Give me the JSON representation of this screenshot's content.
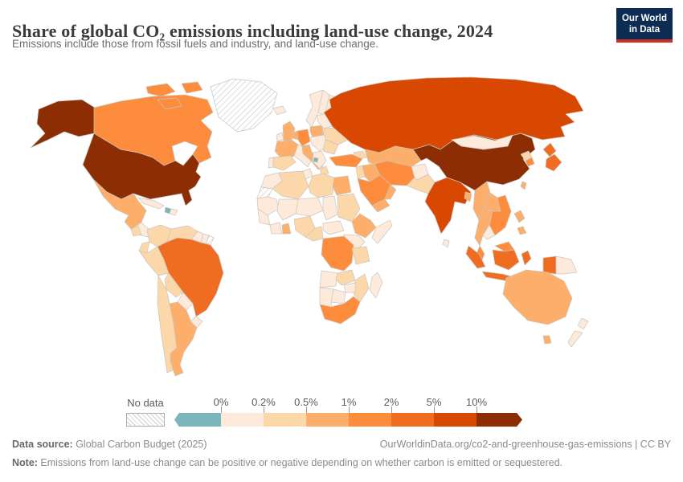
{
  "header": {
    "title": "Share of global CO₂ emissions including land-use change, 2024",
    "subtitle": "Emissions include those from fossil fuels and industry, and land-use change."
  },
  "logo": {
    "line1": "Our World",
    "line2": "in Data"
  },
  "legend": {
    "no_data_label": "No data",
    "ticks": [
      "0%",
      "0.2%",
      "0.5%",
      "1%",
      "2%",
      "5%",
      "10%"
    ],
    "segment_colors": [
      "#7cb5bb",
      "#fdeada",
      "#fcd7a9",
      "#fdae6b",
      "#fd8d3c",
      "#ef6c21",
      "#d94801",
      "#8c2d04"
    ]
  },
  "chart_data": {
    "type": "heatmap",
    "subtype": "world-choropleth",
    "title": "Share of global CO₂ emissions including land-use change, 2024",
    "year": "2024",
    "unit": "share of global total CO₂ emissions",
    "bins": [
      "negative",
      "0–0.2%",
      "0.2–0.5%",
      "0.5–1%",
      "1–2%",
      "2–5%",
      "5–10%",
      ">10%",
      "no-data"
    ],
    "palette": {
      "negative": "#7cb5bb",
      "0–0.2%": "#fdeada",
      "0.2–0.5%": "#fcd7a9",
      "0.5–1%": "#fdae6b",
      "1–2%": "#fd8d3c",
      "2–5%": "#ef6c21",
      "5–10%": "#d94801",
      ">10%": "#8c2d04",
      "no-data": "no-data"
    },
    "regions": {
      "greenland": "no-data",
      "western-sahara": "no-data",
      "french-guiana": "no-data",
      "alaska": ">10%",
      "united-states": ">10%",
      "canada": "1–2%",
      "canada-islands-1": "1–2%",
      "canada-islands-2": "1–2%",
      "canada-islands-3": "1–2%",
      "mexico": "0.5–1%",
      "guatemala": "0.2–0.5%",
      "central-america": "0–0.2%",
      "cuba": "0–0.2%",
      "haiti": "negative",
      "dominican-republic": "0–0.2%",
      "colombia": "0.2–0.5%",
      "venezuela": "0.2–0.5%",
      "guyana": "0–0.2%",
      "suriname": "0–0.2%",
      "ecuador": "0.2–0.5%",
      "peru": "0.2–0.5%",
      "brazil": "2–5%",
      "bolivia": "0.2–0.5%",
      "paraguay": "0–0.2%",
      "uruguay": "0–0.2%",
      "chile": "0.2–0.5%",
      "argentina": "0.5–1%",
      "iceland": "0–0.2%",
      "united-kingdom": "0.5–1%",
      "ireland": "0–0.2%",
      "norway": "0–0.2%",
      "sweden": "0–0.2%",
      "finland": "0–0.2%",
      "denmark": "0–0.2%",
      "benelux": "0.5–1%",
      "germany": "1–2%",
      "france": "0.5–1%",
      "spain": "0.2–0.5%",
      "portugal": "0–0.2%",
      "italy": "0.5–1%",
      "alpine-balkans": "0–0.2%",
      "poland": "0.5–1%",
      "czech-hungary": "0–0.2%",
      "balkans": "0–0.2%",
      "montenegro": "negative",
      "greece": "0.2–0.5%",
      "ukraine": "0.2–0.5%",
      "belarus-baltics": "0–0.2%",
      "romania-bulgaria": "0.2–0.5%",
      "russia": "5–10%",
      "kazakhstan": "0.5–1%",
      "central-asia": "0.2–0.5%",
      "caucasus": "0.2–0.5%",
      "turkey": "1–2%",
      "levant": "0.2–0.5%",
      "iraq": "0.5–1%",
      "saudi-arabia": "1–2%",
      "yemen": "0.5–1%",
      "oman": "0.5–1%",
      "iran": "1–2%",
      "afghanistan": "0–0.2%",
      "pakistan": "0.2–0.5%",
      "india": "5–10%",
      "sri-lanka": "0–0.2%",
      "bangladesh": "0.5–1%",
      "china": ">10%",
      "mongolia": "0–0.2%",
      "north-korea": "0.2–0.5%",
      "south-korea": "1–2%",
      "japan-north": "2–5%",
      "japan-south": "2–5%",
      "taiwan": "0.5–1%",
      "myanmar": "0.5–1%",
      "thailand": "0.5–1%",
      "laos": "0.5–1%",
      "vietnam": "1–2%",
      "cambodia": "0–0.2%",
      "malay-peninsula": "1–2%",
      "sumatra": "2–5%",
      "java": "2–5%",
      "borneo-malaysia": "1–2%",
      "borneo-indonesia": "2–5%",
      "sulawesi": "2–5%",
      "west-papua": "2–5%",
      "papua-new-guinea": "0–0.2%",
      "philippines-north": "0.5–1%",
      "philippines-south": "0.5–1%",
      "australia": "0.5–1%",
      "tasmania": "0.5–1%",
      "new-zealand-north": "0–0.2%",
      "new-zealand-south": "0–0.2%",
      "morocco": "0–0.2%",
      "algeria": "0.2–0.5%",
      "tunisia": "0–0.2%",
      "libya": "0.2–0.5%",
      "egypt": "0.5–1%",
      "mauritania": "0–0.2%",
      "mali": "0–0.2%",
      "niger": "0–0.2%",
      "chad": "0–0.2%",
      "sudan": "0.2–0.5%",
      "senegal": "0–0.2%",
      "guinea-ivory-coast": "0–0.2%",
      "ghana": "0.5–1%",
      "nigeria": "0.2–0.5%",
      "cameroon": "0.2–0.5%",
      "central-african-republic": "0–0.2%",
      "ethiopia": "0.5–1%",
      "somalia": "0–0.2%",
      "kenya-uganda": "0–0.2%",
      "dr-congo": "1–2%",
      "tanzania": "0.2–0.5%",
      "angola": "0–0.2%",
      "zambia": "0.2–0.5%",
      "mozambique": "0.2–0.5%",
      "zimbabwe": "0–0.2%",
      "namibia": "0–0.2%",
      "botswana": "0–0.2%",
      "south-africa": "1–2%",
      "madagascar": "0–0.2%"
    }
  },
  "footer": {
    "source_label": "Data source:",
    "source": " Global Carbon Budget (2025)",
    "link": "OurWorldinData.org/co2-and-greenhouse-gas-emissions | CC BY",
    "note_label": "Note:",
    "note": " Emissions from land-use change can be positive or negative depending on whether carbon is emitted or sequestered."
  }
}
